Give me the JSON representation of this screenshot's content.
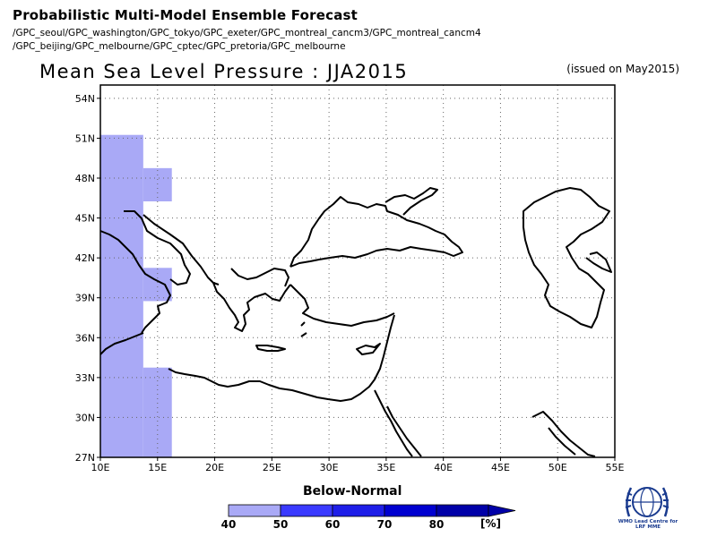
{
  "header": {
    "title": "Probabilistic Multi-Model Ensemble Forecast",
    "models_line1": "/GPC_seoul/GPC_washington/GPC_tokyo/GPC_exeter/GPC_montreal_cancm3/GPC_montreal_cancm4",
    "models_line2": "/GPC_beijing/GPC_melbourne/GPC_cptec/GPC_pretoria/GPC_melbourne"
  },
  "plot": {
    "title": "Mean Sea Level Pressure : JJA2015",
    "issued": "(issued on May2015)"
  },
  "map": {
    "lon_range": [
      10,
      55
    ],
    "lat_range": [
      27,
      55
    ],
    "lon_ticks": [
      "10E",
      "15E",
      "20E",
      "25E",
      "30E",
      "35E",
      "40E",
      "45E",
      "50E",
      "55E"
    ],
    "lat_ticks": [
      "27N",
      "30N",
      "33N",
      "36N",
      "39N",
      "42N",
      "45N",
      "48N",
      "51N",
      "54N"
    ],
    "grid": "dotted",
    "shaded_category": "Below-Normal",
    "shaded_color": "#a9a9f6",
    "shaded_cells": [
      {
        "lon": [
          10,
          13.75
        ],
        "lat": [
          27,
          51.25
        ]
      },
      {
        "lon": [
          13.75,
          16.25
        ],
        "lat": [
          27,
          33.75
        ]
      },
      {
        "lon": [
          13.75,
          16.25
        ],
        "lat": [
          38.75,
          41.25
        ]
      },
      {
        "lon": [
          13.75,
          16.25
        ],
        "lat": [
          46.25,
          48.75
        ]
      }
    ]
  },
  "colorbar": {
    "title": "Below-Normal",
    "unit": "[%]",
    "ticks": [
      "40",
      "50",
      "60",
      "70",
      "80"
    ],
    "colors": [
      "#a9a9f6",
      "#3a3aff",
      "#1e1ee8",
      "#0000d0",
      "#0000a8"
    ]
  },
  "logo": {
    "line1": "WMO Lead Centre for",
    "line2": "LRF MME"
  }
}
